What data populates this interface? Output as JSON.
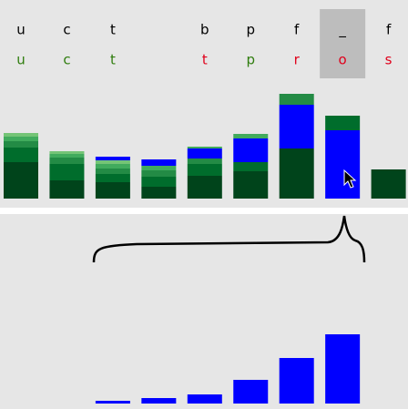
{
  "columns": [
    {
      "top": "u",
      "bottom": "u",
      "bottom_color": "#2f7d0e",
      "segments": [
        {
          "value": 40,
          "color": "#00441b"
        },
        {
          "value": 16,
          "color": "#006d2c"
        },
        {
          "value": 7,
          "color": "#238b45"
        },
        {
          "value": 5,
          "color": "#41ab5d"
        },
        {
          "value": 4,
          "color": "#74c476"
        }
      ],
      "detail": null
    },
    {
      "top": "c",
      "bottom": "c",
      "bottom_color": "#2f7d0e",
      "segments": [
        {
          "value": 20,
          "color": "#00441b"
        },
        {
          "value": 18,
          "color": "#006d2c"
        },
        {
          "value": 7,
          "color": "#238b45"
        },
        {
          "value": 4,
          "color": "#41ab5d"
        },
        {
          "value": 3,
          "color": "#74c476"
        }
      ],
      "detail": null
    },
    {
      "top": "t",
      "bottom": "t",
      "bottom_color": "#2f7d0e",
      "segments": [
        {
          "value": 18,
          "color": "#00441b"
        },
        {
          "value": 9,
          "color": "#006d2c"
        },
        {
          "value": 6,
          "color": "#238b45"
        },
        {
          "value": 5,
          "color": "#41ab5d"
        },
        {
          "value": 4,
          "color": "#74c476"
        },
        {
          "value": 4,
          "color": "#0000ff"
        }
      ],
      "detail": 3
    },
    {
      "top": null,
      "bottom": null,
      "bottom_color": null,
      "segments": [
        {
          "value": 13,
          "color": "#00441b"
        },
        {
          "value": 11,
          "color": "#006d2c"
        },
        {
          "value": 7,
          "color": "#238b45"
        },
        {
          "value": 5,
          "color": "#41ab5d"
        },
        {
          "value": 7,
          "color": "#0000ff"
        }
      ],
      "detail": 6
    },
    {
      "top": "b",
      "bottom": "t",
      "bottom_color": "#e0001b",
      "segments": [
        {
          "value": 25,
          "color": "#00441b"
        },
        {
          "value": 13,
          "color": "#006d2c"
        },
        {
          "value": 6,
          "color": "#238b45"
        },
        {
          "value": 11,
          "color": "#0000ff"
        },
        {
          "value": 2,
          "color": "#41ab5d"
        }
      ],
      "detail": 10
    },
    {
      "top": "p",
      "bottom": "p",
      "bottom_color": "#2f7d0e",
      "segments": [
        {
          "value": 30,
          "color": "#00441b"
        },
        {
          "value": 10,
          "color": "#006d2c"
        },
        {
          "value": 26,
          "color": "#0000ff"
        },
        {
          "value": 5,
          "color": "#41ab5d"
        }
      ],
      "detail": 26
    },
    {
      "top": "f",
      "bottom": "r",
      "bottom_color": "#e0001b",
      "segments": [
        {
          "value": 55,
          "color": "#00441b"
        },
        {
          "value": 48,
          "color": "#0000ff"
        },
        {
          "value": 12,
          "color": "#238b45"
        }
      ],
      "detail": 50
    },
    {
      "top": "_",
      "bottom": "o",
      "bottom_color": "#e0001b",
      "segments": [
        {
          "value": 75,
          "color": "#0000ff"
        },
        {
          "value": 16,
          "color": "#006d2c"
        }
      ],
      "detail": 76
    },
    {
      "top": "f",
      "bottom": "s",
      "bottom_color": "#e0001b",
      "segments": [
        {
          "value": 32,
          "color": "#00441b"
        }
      ],
      "detail": null
    }
  ],
  "highlighted": 7
}
